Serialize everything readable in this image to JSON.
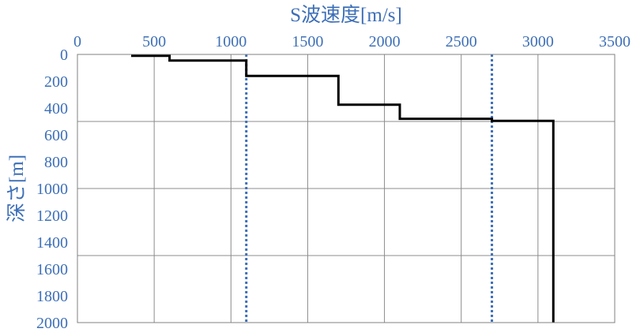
{
  "chart_data": {
    "type": "line",
    "xlabel": "S波速度[m/s]",
    "ylabel": "深さ[m]",
    "xlim": [
      0,
      3500
    ],
    "ylim": [
      0,
      2000
    ],
    "x_ticks": [
      "0",
      "500",
      "1000",
      "1500",
      "2000",
      "2500",
      "3000",
      "3500"
    ],
    "y_ticks": [
      "0",
      "200",
      "400",
      "600",
      "800",
      "1000",
      "1200",
      "1400",
      "1600",
      "1800",
      "2000"
    ],
    "x_axis_position": "top",
    "y_axis_inverted": true,
    "grid": true,
    "grid_x_every": 500,
    "grid_y_every": 500,
    "profile": {
      "color": "#000000",
      "x": [
        350,
        600,
        600,
        1100,
        1100,
        1700,
        1700,
        2100,
        2100,
        2700,
        2700,
        3100,
        3100
      ],
      "y": [
        10,
        10,
        45,
        45,
        160,
        160,
        375,
        375,
        480,
        480,
        495,
        495,
        2000
      ]
    },
    "reference_lines": [
      {
        "x": 1100,
        "style": "dotted",
        "color": "#3d6fb7"
      },
      {
        "x": 2700,
        "style": "dotted",
        "color": "#3d6fb7"
      }
    ]
  }
}
